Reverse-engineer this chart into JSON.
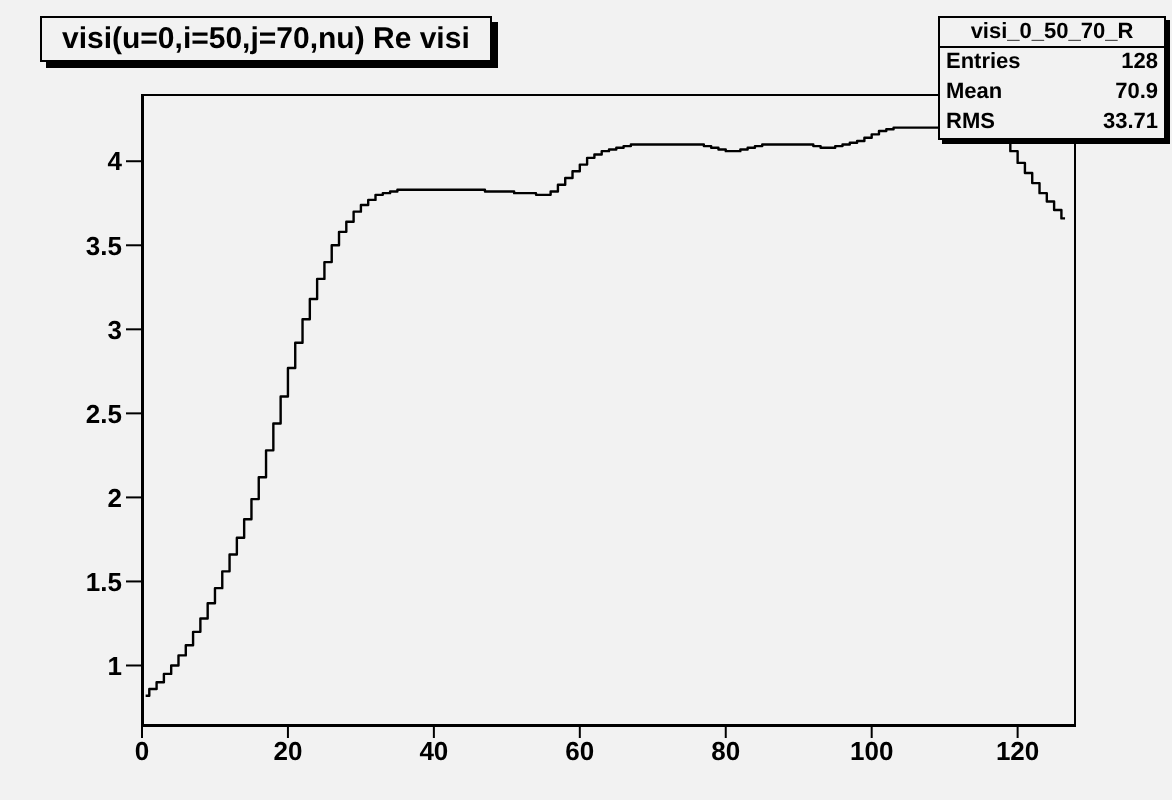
{
  "chart_data": {
    "type": "step",
    "title": "visi(u=0,i=50,j=70,nu) Re visi",
    "annotations": [
      "visi_0_50_70_R",
      "Entries",
      "128",
      "Mean",
      "70.9",
      "RMS",
      "33.71"
    ],
    "x": [
      0.5,
      1.5,
      2.5,
      3.5,
      4.5,
      5.5,
      6.5,
      7.5,
      8.5,
      9.5,
      10.5,
      11.5,
      12.5,
      13.5,
      14.5,
      15.5,
      16.5,
      17.5,
      18.5,
      19.5,
      20.5,
      21.5,
      22.5,
      23.5,
      24.5,
      25.5,
      26.5,
      27.5,
      28.5,
      29.5,
      30.5,
      31.5,
      32.5,
      33.5,
      34.5,
      35.5,
      36.5,
      37.5,
      38.5,
      39.5,
      40.5,
      41.5,
      42.5,
      43.5,
      44.5,
      45.5,
      46.5,
      47.5,
      48.5,
      49.5,
      50.5,
      51.5,
      52.5,
      53.5,
      54.5,
      55.5,
      56.5,
      57.5,
      58.5,
      59.5,
      60.5,
      61.5,
      62.5,
      63.5,
      64.5,
      65.5,
      66.5,
      67.5,
      68.5,
      69.5,
      70.5,
      71.5,
      72.5,
      73.5,
      74.5,
      75.5,
      76.5,
      77.5,
      78.5,
      79.5,
      80.5,
      81.5,
      82.5,
      83.5,
      84.5,
      85.5,
      86.5,
      87.5,
      88.5,
      89.5,
      90.5,
      91.5,
      92.5,
      93.5,
      94.5,
      95.5,
      96.5,
      97.5,
      98.5,
      99.5,
      100.5,
      101.5,
      102.5,
      103.5,
      104.5,
      105.5,
      106.5,
      107.5,
      108.5,
      109.5,
      110.5,
      111.5,
      112.5,
      113.5,
      114.5,
      115.5,
      116.5,
      117.5,
      118.5,
      119.5,
      120.5,
      121.5,
      122.5,
      123.5,
      124.5,
      125.5,
      126.5
    ],
    "values": [
      0.82,
      0.86,
      0.9,
      0.95,
      1.0,
      1.06,
      1.12,
      1.2,
      1.28,
      1.37,
      1.46,
      1.56,
      1.66,
      1.76,
      1.87,
      1.99,
      2.12,
      2.28,
      2.44,
      2.6,
      2.77,
      2.92,
      3.06,
      3.18,
      3.3,
      3.4,
      3.5,
      3.58,
      3.64,
      3.7,
      3.74,
      3.77,
      3.8,
      3.81,
      3.82,
      3.83,
      3.83,
      3.83,
      3.83,
      3.83,
      3.83,
      3.83,
      3.83,
      3.83,
      3.83,
      3.83,
      3.83,
      3.82,
      3.82,
      3.82,
      3.82,
      3.81,
      3.81,
      3.81,
      3.8,
      3.8,
      3.82,
      3.86,
      3.9,
      3.94,
      3.98,
      4.02,
      4.04,
      4.06,
      4.07,
      4.08,
      4.09,
      4.1,
      4.1,
      4.1,
      4.1,
      4.1,
      4.1,
      4.1,
      4.1,
      4.1,
      4.1,
      4.09,
      4.08,
      4.07,
      4.06,
      4.06,
      4.07,
      4.08,
      4.09,
      4.1,
      4.1,
      4.1,
      4.1,
      4.1,
      4.1,
      4.1,
      4.09,
      4.08,
      4.08,
      4.09,
      4.1,
      4.11,
      4.12,
      4.14,
      4.16,
      4.18,
      4.19,
      4.2,
      4.2,
      4.2,
      4.2,
      4.2,
      4.2,
      4.2,
      null,
      null,
      null,
      null,
      null,
      null,
      null,
      null,
      4.12,
      4.06,
      3.99,
      3.93,
      3.87,
      3.81,
      3.76,
      3.71,
      3.66
    ],
    "color": "#000000",
    "xlim": [
      0,
      128
    ],
    "xticks": [
      0,
      20,
      40,
      60,
      80,
      100,
      120
    ],
    "ylim": [
      0.64,
      4.4
    ],
    "yticks": [
      1,
      1.5,
      2,
      2.5,
      3,
      3.5,
      4
    ],
    "grid": false
  }
}
